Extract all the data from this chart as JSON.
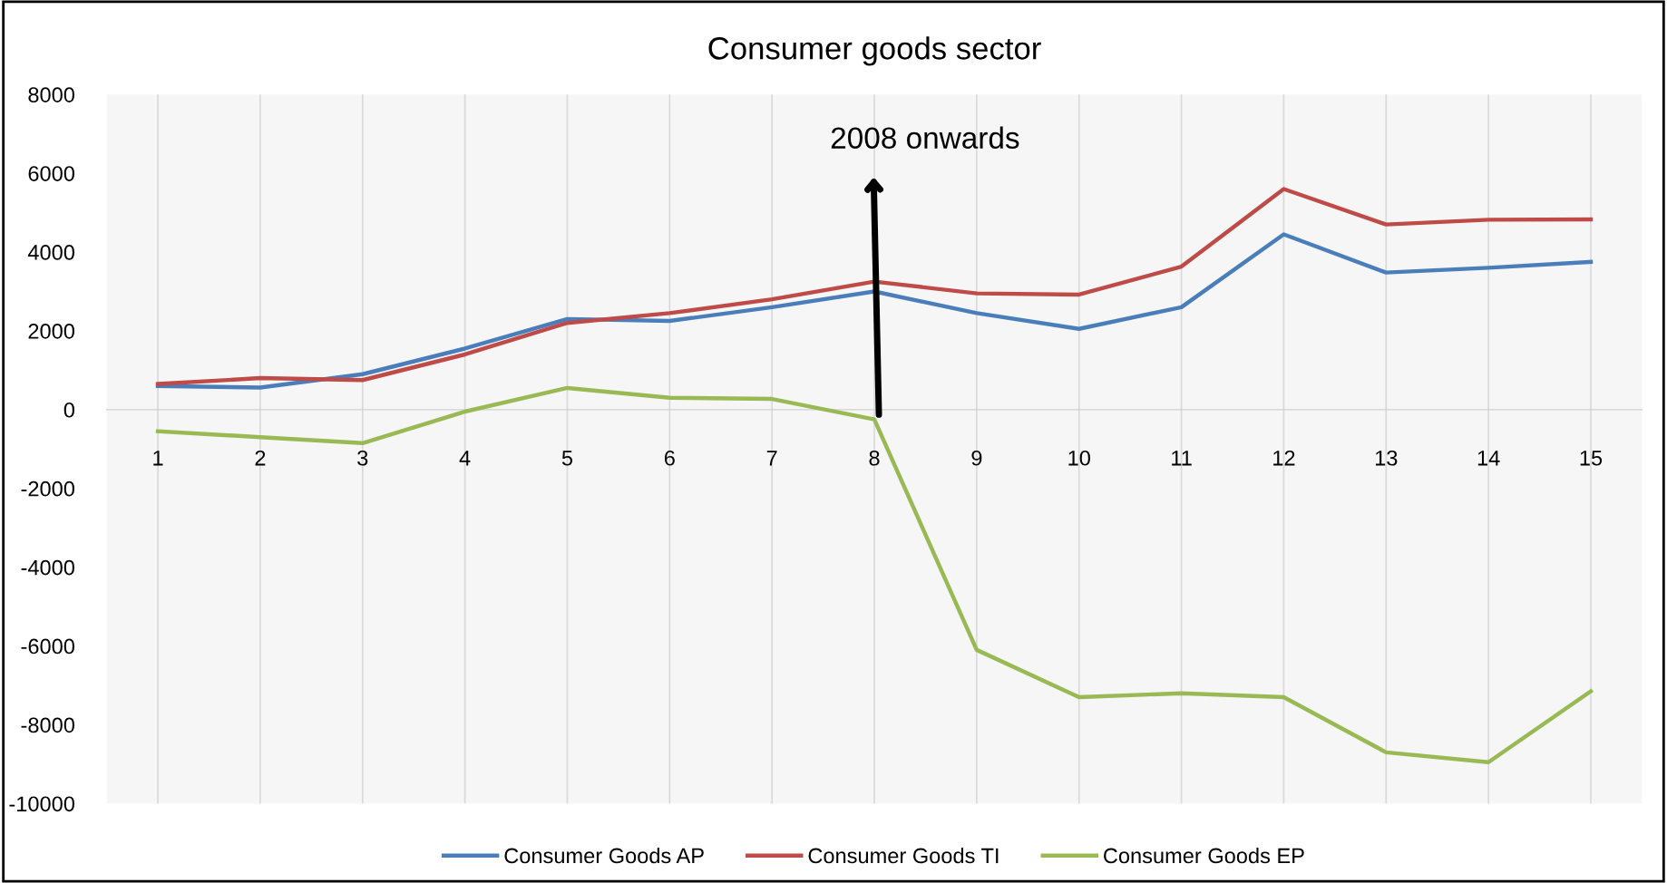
{
  "chart_data": {
    "type": "line",
    "title": "Consumer goods sector",
    "categories": [
      "1",
      "2",
      "3",
      "4",
      "5",
      "6",
      "7",
      "8",
      "9",
      "10",
      "11",
      "12",
      "13",
      "14",
      "15"
    ],
    "series": [
      {
        "name": "Consumer Goods AP",
        "color": "#4a7ebb",
        "values": [
          600,
          560,
          900,
          1550,
          2300,
          2250,
          2600,
          3000,
          2450,
          2050,
          2600,
          4450,
          3480,
          3600,
          3750
        ]
      },
      {
        "name": "Consumer Goods TI",
        "color": "#be4b48",
        "values": [
          650,
          800,
          750,
          1400,
          2200,
          2450,
          2800,
          3250,
          2950,
          2920,
          3630,
          5600,
          4700,
          4820,
          4830
        ]
      },
      {
        "name": "Consumer Goods EP",
        "color": "#98b954",
        "values": [
          -550,
          -700,
          -850,
          -50,
          550,
          300,
          270,
          -250,
          -6100,
          -7300,
          -7200,
          -7300,
          -8700,
          -8950,
          -7150
        ]
      }
    ],
    "ylim": [
      -10000,
      8000
    ],
    "yticks": [
      -10000,
      -8000,
      -6000,
      -4000,
      -2000,
      0,
      2000,
      4000,
      6000,
      8000
    ],
    "grid": "x",
    "legend": "bottom",
    "marker": "none",
    "line_style": "solid",
    "annotations": [
      "2008 onwards"
    ]
  }
}
